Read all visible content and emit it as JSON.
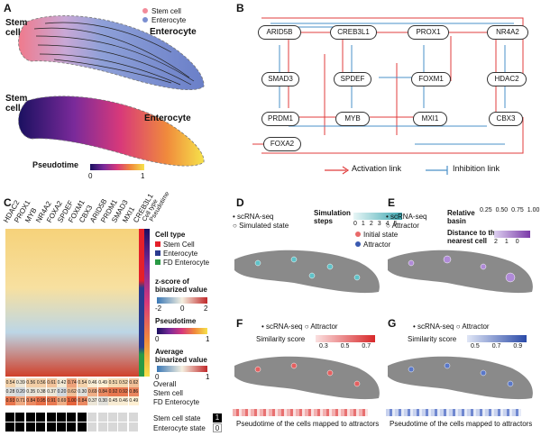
{
  "panels": {
    "A": {
      "label": "A",
      "top": {
        "stem_label": "Stem\ncell",
        "end_label": "Enterocyte",
        "legend": [
          {
            "label": "Stem cell",
            "color": "#f28b9a"
          },
          {
            "label": "Enterocyte",
            "color": "#7b8fd1"
          }
        ]
      },
      "bottom": {
        "stem_label": "Stem\ncell",
        "end_label": "Enterocyte",
        "colorbar_title": "Pseudotime",
        "colorbar_min": "0",
        "colorbar_max": "1"
      }
    },
    "B": {
      "label": "B",
      "genes": [
        "ARID5B",
        "CREB3L1",
        "PROX1",
        "NR4A2",
        "SMAD3",
        "SPDEF",
        "FOXM1",
        "HDAC2",
        "PRDM1",
        "MYB",
        "MXI1",
        "CBX3",
        "FOXA2"
      ],
      "legend": {
        "activation": "Activation link",
        "inhibition": "Inhibition link",
        "activation_color": "#e03c3c",
        "inhibition_color": "#4a90c8"
      }
    },
    "C": {
      "label": "C",
      "columns": [
        "HDAC2",
        "PROX1",
        "MYB",
        "NR4A2",
        "FOXA2",
        "SPDEF",
        "FOXM1",
        "CBX3",
        "ARID5B",
        "PRDM1",
        "SMAD3",
        "MXI1",
        "CREB3L1"
      ],
      "side_columns": [
        "Cell type",
        "Pseudotime"
      ],
      "legend": {
        "celltype_title": "Cell type",
        "celltypes": [
          {
            "label": "Stem Cell",
            "color": "#e4202a"
          },
          {
            "label": "Enterocyte",
            "color": "#2b3a8f"
          },
          {
            "label": "FD Enterocyte",
            "color": "#2a9a45"
          }
        ],
        "zscore_title": "z-score of\nbinarized value",
        "z_min": "-2",
        "z_mid": "0",
        "z_max": "2",
        "pseudotime_title": "Pseudotime",
        "p_min": "0",
        "p_max": "1",
        "avg_title": "Average\nbinarized value",
        "avg_min": "0",
        "avg_max": "1"
      },
      "avg_rows": [
        {
          "label": "Overall",
          "values": [
            "0.54",
            "0.39",
            "0.56",
            "0.56",
            "0.61",
            "0.42",
            "0.74",
            "0.54",
            "0.46",
            "0.49",
            "0.51",
            "0.52",
            "0.62"
          ]
        },
        {
          "label": "Stem cell",
          "values": [
            "0.28",
            "0.20",
            "0.35",
            "0.38",
            "0.37",
            "0.20",
            "0.62",
            "0.30",
            "0.69",
            "0.84",
            "0.92",
            "0.92",
            "0.86"
          ]
        },
        {
          "label": "FD Enterocyte",
          "values": [
            "0.93",
            "0.71",
            "0.84",
            "0.95",
            "0.91",
            "0.69",
            "1.00",
            "0.84",
            "0.37",
            "0.30",
            "0.45",
            "0.46",
            "0.49"
          ]
        }
      ],
      "states": [
        {
          "label": "Stem cell state",
          "cells": [
            1,
            1,
            1,
            1,
            1,
            1,
            1,
            1,
            0,
            0,
            0,
            0,
            0
          ],
          "badge": "1"
        },
        {
          "label": "Enterocyte state",
          "cells": [
            1,
            1,
            1,
            1,
            1,
            1,
            1,
            1,
            0,
            0,
            0,
            0,
            0
          ],
          "badge": "0"
        }
      ]
    },
    "D": {
      "label": "D",
      "legend_scrna": "scRNA-seq",
      "legend_sim": "Simulated state",
      "steps_title": "Simulation\nsteps",
      "steps": [
        "0",
        "1",
        "2",
        "3",
        "4",
        "5"
      ],
      "initial": "Initial state",
      "attractor": "Attractor"
    },
    "E": {
      "label": "E",
      "legend_scrna": "scRNA-seq",
      "legend_attr": "Attractor",
      "basin_title": "Relative\nbasin",
      "basin_values": [
        "0.25",
        "0.50",
        "0.75",
        "1.00"
      ],
      "dist_title": "Distance to the\nnearest cell",
      "dist_values": [
        "2",
        "1",
        "0"
      ]
    },
    "F": {
      "label": "F",
      "legend_scrna": "scRNA-seq",
      "legend_attr": "Attractor",
      "sim_title": "Similarity score",
      "sim_values": [
        "0.3",
        "0.5",
        "0.7"
      ],
      "axis_label": "Pseudotime of the cells mapped to attractors"
    },
    "G": {
      "label": "G",
      "legend_scrna": "scRNA-seq",
      "legend_attr": "Attractor",
      "sim_title": "Similarity score",
      "sim_values": [
        "0.5",
        "0.7",
        "0.9"
      ],
      "axis_label": "Pseudotime of the cells mapped to attractors"
    }
  }
}
